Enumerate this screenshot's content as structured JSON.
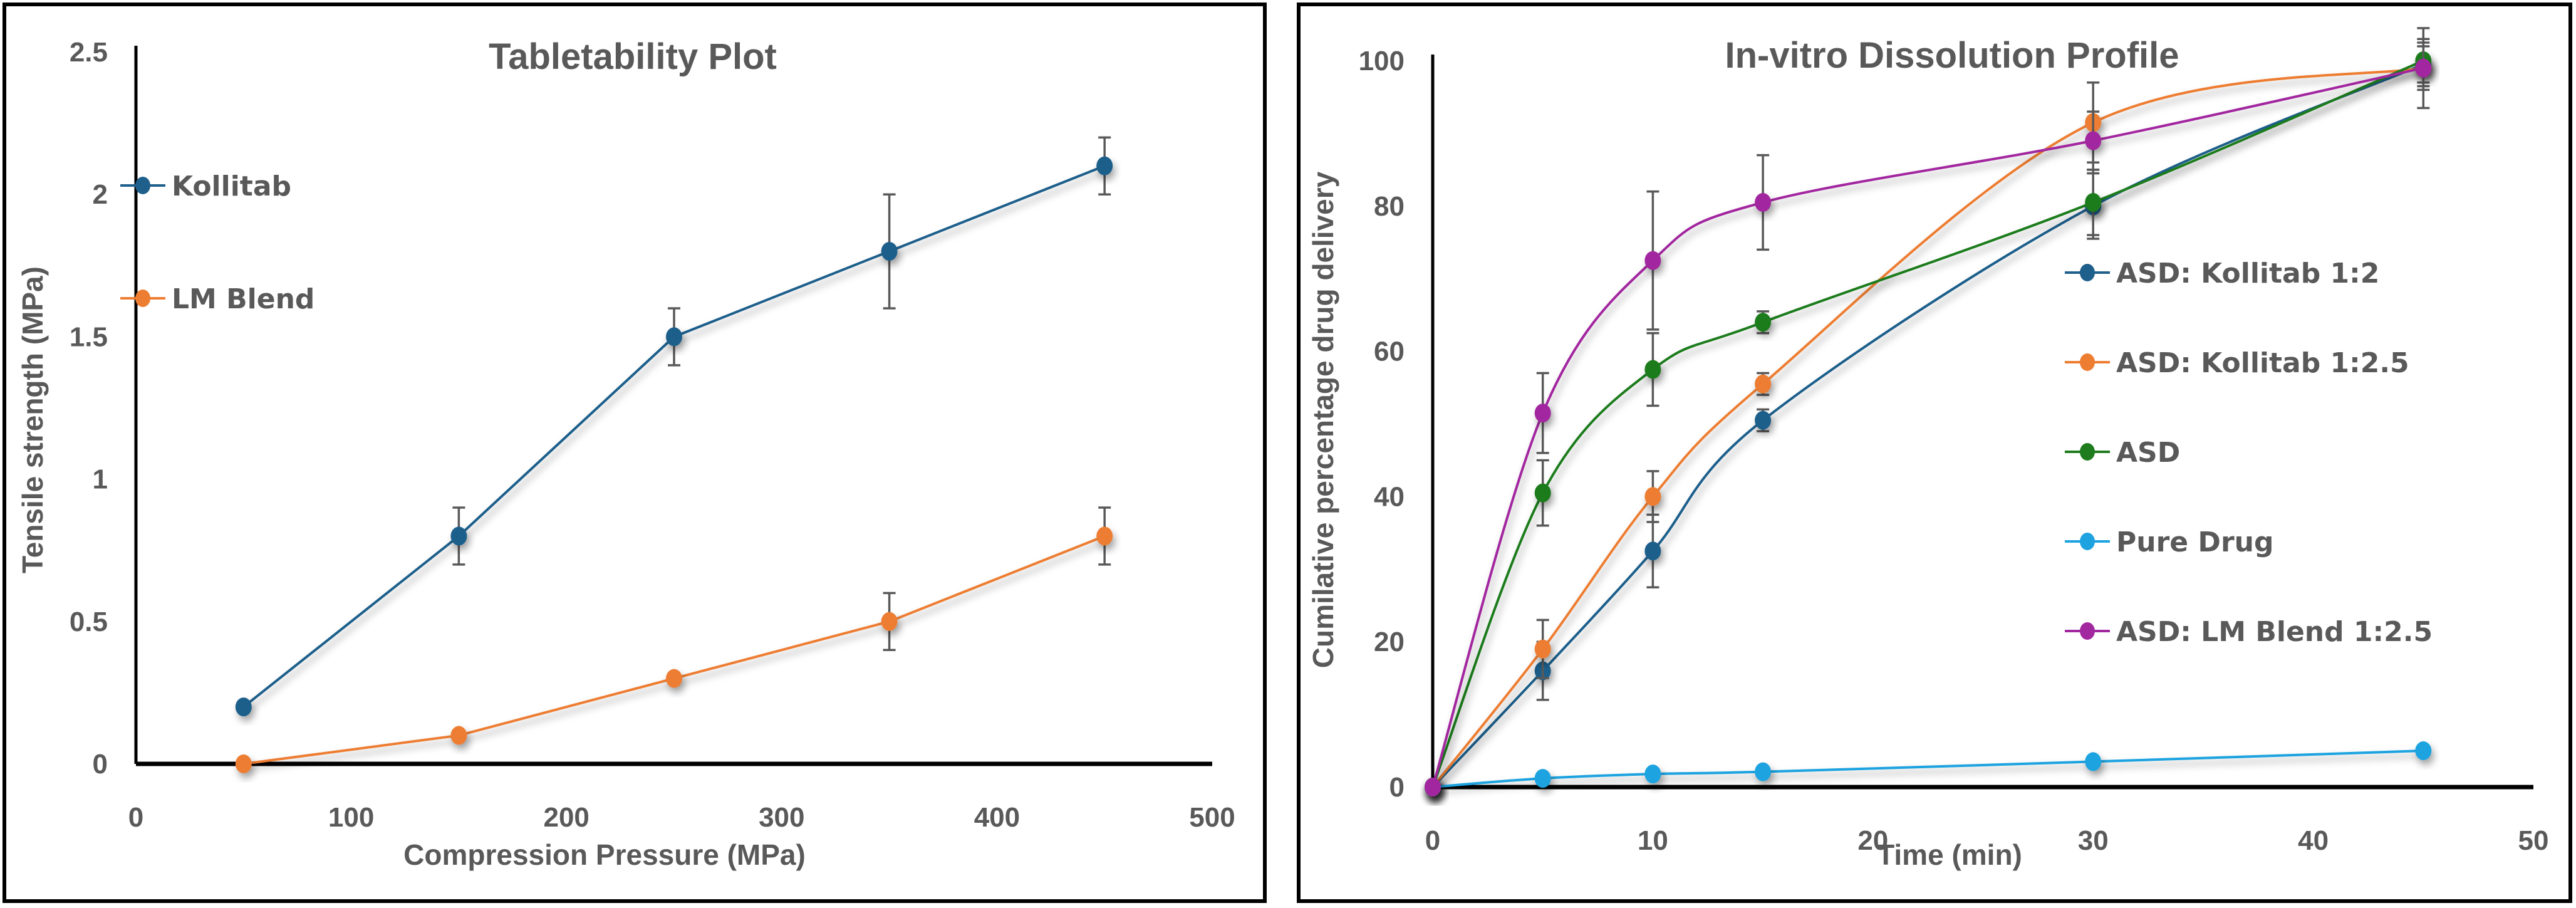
{
  "chart_data": [
    {
      "type": "line",
      "title": "Tabletability Plot",
      "xlabel": "Compression Pressure (MPa)",
      "ylabel": "Tensile strength (MPa)",
      "xlim": [
        0,
        500
      ],
      "ylim": [
        0,
        2.5
      ],
      "x_ticks": [
        0,
        100,
        200,
        300,
        400,
        500
      ],
      "y_ticks": [
        0,
        0.5,
        1,
        1.5,
        2,
        2.5
      ],
      "x_tick_labels": [
        "0",
        "100",
        "200",
        "300",
        "400",
        "500"
      ],
      "y_tick_labels": [
        "0",
        "0.5",
        "1",
        "1.5",
        "2",
        "2.5"
      ],
      "grid": false,
      "legend_position": "top-left",
      "smooth": false,
      "x": [
        50,
        150,
        250,
        350,
        450
      ],
      "series": [
        {
          "name": "Kollitab",
          "color": "#1f5f8b",
          "values": [
            0.2,
            0.8,
            1.5,
            1.8,
            2.1
          ],
          "errors": [
            0,
            0.1,
            0.1,
            0.2,
            0.1
          ]
        },
        {
          "name": "LM Blend",
          "color": "#ed7d31",
          "values": [
            0,
            0.1,
            0.3,
            0.5,
            0.8
          ],
          "errors": [
            0,
            0,
            0,
            0.1,
            0.1
          ]
        }
      ]
    },
    {
      "type": "line",
      "title": "In-vitro Dissolution Profile",
      "xlabel": "Time (min)",
      "ylabel": "Cumilative percentage drug delivery",
      "xlim": [
        0,
        50
      ],
      "ylim": [
        0,
        100
      ],
      "x_ticks": [
        0,
        10,
        20,
        30,
        40,
        50
      ],
      "y_ticks": [
        0,
        20,
        40,
        60,
        80,
        100
      ],
      "x_tick_labels": [
        "0",
        "10",
        "20",
        "30",
        "40",
        "50"
      ],
      "y_tick_labels": [
        "0",
        "20",
        "40",
        "60",
        "80",
        "100"
      ],
      "grid": false,
      "legend_position": "right",
      "smooth": true,
      "x": [
        0,
        5,
        10,
        15,
        30,
        45
      ],
      "series": [
        {
          "name": "ASD: Kollitab 1:2",
          "color": "#1f5f8b",
          "values": [
            0,
            16,
            32.5,
            50.5,
            80,
            99.5
          ],
          "errors": [
            0,
            4,
            5,
            1.5,
            4.5,
            3
          ]
        },
        {
          "name": "ASD: Kollitab 1:2.5",
          "color": "#ed7d31",
          "values": [
            0,
            19,
            40,
            55.5,
            91.5,
            99
          ],
          "errors": [
            0,
            4,
            3.5,
            1.5,
            5.5,
            3
          ]
        },
        {
          "name": "ASD",
          "color": "#1e7b1e",
          "values": [
            0,
            40.5,
            57.5,
            64,
            80.5,
            100
          ],
          "errors": [
            0,
            4.5,
            5,
            1.5,
            4.5,
            3
          ]
        },
        {
          "name": "Pure Drug",
          "color": "#1fa3e0",
          "values": [
            0,
            1.2,
            1.8,
            2.1,
            3.5,
            5
          ],
          "errors": [
            0,
            0,
            0,
            0,
            0,
            0
          ]
        },
        {
          "name": "ASD: LM Blend 1:2.5",
          "color": "#a2289f",
          "values": [
            0,
            51.5,
            72.5,
            80.5,
            89,
            99
          ],
          "errors": [
            0,
            5.5,
            9.5,
            6.5,
            4,
            5.5
          ]
        }
      ]
    }
  ]
}
